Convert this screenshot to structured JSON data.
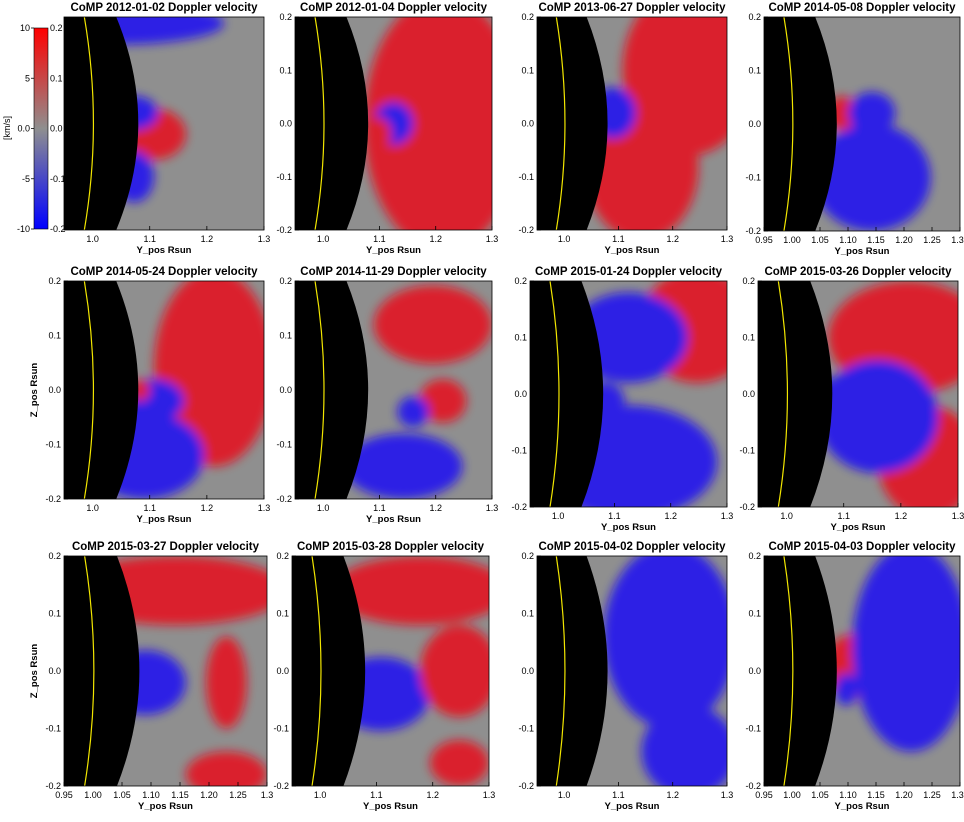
{
  "colors": {
    "red": "#e8101c",
    "blue": "#1a0cf5",
    "gray": "#8f8f8f",
    "disk": "#000000",
    "limb": "#f2e600"
  },
  "colorbar": {
    "unit": "[km/s]",
    "ticks": [
      "10",
      "5",
      "0.0",
      "-5",
      "-10"
    ],
    "ticks_right": [
      "0.2",
      "0.1",
      "0.0",
      "-0.1",
      "-0.2"
    ]
  },
  "chart_data": [
    {
      "type": "heatmap",
      "title": "CoMP 2012-01-02 Doppler velocity",
      "xlabel": "Y_pos Rsun",
      "ylabel": "",
      "xticks": [
        "1.0",
        "1.1",
        "1.2",
        "1.3"
      ],
      "yticks": [],
      "xlim": [
        0.95,
        1.3
      ],
      "ylim": [
        -0.2,
        0.2
      ],
      "value_range_kms": [
        -10,
        10
      ]
    },
    {
      "type": "heatmap",
      "title": "CoMP 2012-01-04 Doppler velocity",
      "xlabel": "Y_pos Rsun",
      "ylabel": "",
      "xticks": [
        "1.0",
        "1.1",
        "1.2",
        "1.3"
      ],
      "yticks": [
        "0.2",
        "0.1",
        "0.0",
        "-0.1",
        "-0.2"
      ],
      "xlim": [
        0.95,
        1.3
      ],
      "ylim": [
        -0.2,
        0.2
      ],
      "value_range_kms": [
        -10,
        10
      ]
    },
    {
      "type": "heatmap",
      "title": "CoMP 2013-06-27 Doppler velocity",
      "xlabel": "Y_pos Rsun",
      "ylabel": "",
      "xticks": [
        "1.0",
        "1.1",
        "1.2",
        "1.3"
      ],
      "yticks": [
        "0.2",
        "0.1",
        "0.0",
        "-0.1",
        "-0.2"
      ],
      "xlim": [
        0.95,
        1.3
      ],
      "ylim": [
        -0.2,
        0.2
      ],
      "value_range_kms": [
        -10,
        10
      ]
    },
    {
      "type": "heatmap",
      "title": "CoMP 2014-05-08 Doppler velocity",
      "xlabel": "Y_pos Rsun",
      "ylabel": "",
      "xticks": [
        "0.95",
        "1.00",
        "1.05",
        "1.10",
        "1.15",
        "1.20",
        "1.25",
        "1.30"
      ],
      "yticks": [
        "0.2",
        "0.1",
        "0.0",
        "-0.1",
        "-0.2"
      ],
      "xlim": [
        0.95,
        1.3
      ],
      "ylim": [
        -0.2,
        0.2
      ],
      "value_range_kms": [
        -10,
        10
      ]
    },
    {
      "type": "heatmap",
      "title": "CoMP 2014-05-24 Doppler velocity",
      "xlabel": "Y_pos Rsun",
      "ylabel": "Z_pos Rsun",
      "xticks": [
        "1.0",
        "1.1",
        "1.2",
        "1.3"
      ],
      "yticks": [
        "0.2",
        "0.1",
        "0.0",
        "-0.1",
        "-0.2"
      ],
      "xlim": [
        0.95,
        1.3
      ],
      "ylim": [
        -0.2,
        0.2
      ],
      "value_range_kms": [
        -10,
        10
      ]
    },
    {
      "type": "heatmap",
      "title": "CoMP 2014-11-29 Doppler velocity",
      "xlabel": "Y_pos Rsun",
      "ylabel": "",
      "xticks": [
        "1.0",
        "1.1",
        "1.2",
        "1.3"
      ],
      "yticks": [
        "0.2",
        "0.1",
        "0.0",
        "-0.1",
        "-0.2"
      ],
      "xlim": [
        0.95,
        1.3
      ],
      "ylim": [
        -0.2,
        0.2
      ],
      "value_range_kms": [
        -10,
        10
      ]
    },
    {
      "type": "heatmap",
      "title": "CoMP 2015-01-24 Doppler velocity",
      "xlabel": "Y_pos Rsun",
      "ylabel": "",
      "xticks": [
        "1.0",
        "1.1",
        "1.2",
        "1.3"
      ],
      "yticks": [
        "0.2",
        "0.1",
        "0.0",
        "-0.1",
        "-0.2"
      ],
      "xlim": [
        0.95,
        1.3
      ],
      "ylim": [
        -0.2,
        0.2
      ],
      "value_range_kms": [
        -10,
        10
      ]
    },
    {
      "type": "heatmap",
      "title": "CoMP 2015-03-26 Doppler velocity",
      "xlabel": "Y_pos Rsun",
      "ylabel": "",
      "xticks": [
        "1.0",
        "1.1",
        "1.2",
        "1.3"
      ],
      "yticks": [
        "0.2",
        "0.1",
        "0.0",
        "-0.1",
        "-0.2"
      ],
      "xlim": [
        0.95,
        1.3
      ],
      "ylim": [
        -0.2,
        0.2
      ],
      "value_range_kms": [
        -10,
        10
      ]
    },
    {
      "type": "heatmap",
      "title": "CoMP 2015-03-27 Doppler velocity",
      "xlabel": "Y_pos Rsun",
      "ylabel": "Z_pos Rsun",
      "xticks": [
        "0.95",
        "1.00",
        "1.05",
        "1.10",
        "1.15",
        "1.20",
        "1.25",
        "1.3"
      ],
      "yticks": [
        "0.2",
        "0.1",
        "0.0",
        "-0.1",
        "-0.2"
      ],
      "xlim": [
        0.95,
        1.3
      ],
      "ylim": [
        -0.2,
        0.2
      ],
      "value_range_kms": [
        -10,
        10
      ]
    },
    {
      "type": "heatmap",
      "title": "CoMP 2015-03-28 Doppler velocity",
      "xlabel": "Y_pos Rsun",
      "ylabel": "",
      "xticks": [
        "1.0",
        "1.1",
        "1.2",
        "1.3"
      ],
      "yticks": [
        "0.2",
        "0.1",
        "0.0",
        "-0.1",
        "-0.2"
      ],
      "xlim": [
        0.95,
        1.3
      ],
      "ylim": [
        -0.2,
        0.2
      ],
      "value_range_kms": [
        -10,
        10
      ]
    },
    {
      "type": "heatmap",
      "title": "CoMP 2015-04-02 Doppler velocity",
      "xlabel": "Y_pos Rsun",
      "ylabel": "",
      "xticks": [
        "1.0",
        "1.1",
        "1.2",
        "1.3"
      ],
      "yticks": [
        "0.2",
        "0.1",
        "0.0",
        "-0.1",
        "-0.2"
      ],
      "xlim": [
        0.95,
        1.3
      ],
      "ylim": [
        -0.2,
        0.2
      ],
      "value_range_kms": [
        -10,
        10
      ]
    },
    {
      "type": "heatmap",
      "title": "CoMP 2015-04-03 Doppler velocity",
      "xlabel": "Y_pos Rsun",
      "ylabel": "",
      "xticks": [
        "0.95",
        "1.00",
        "1.05",
        "1.10",
        "1.15",
        "1.20",
        "1.25",
        "1.30"
      ],
      "yticks": [
        "0.2",
        "0.1",
        "0.0",
        "-0.1",
        "-0.2"
      ],
      "xlim": [
        0.95,
        1.3
      ],
      "ylim": [
        -0.2,
        0.2
      ],
      "value_range_kms": [
        -10,
        10
      ]
    }
  ]
}
